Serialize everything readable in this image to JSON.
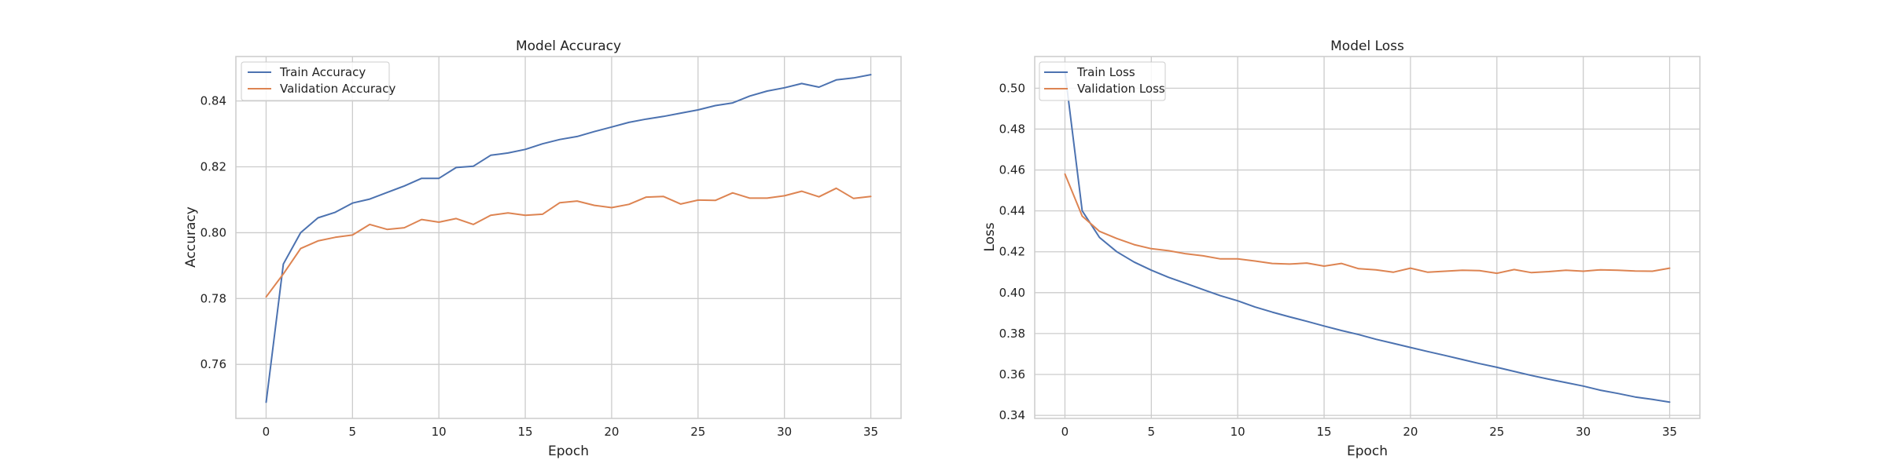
{
  "chart_data": [
    {
      "type": "line",
      "title": "Model Accuracy",
      "xlabel": "Epoch",
      "ylabel": "Accuracy",
      "xlim": [
        -1.75,
        36.75
      ],
      "ylim": [
        0.7436,
        0.8535
      ],
      "xticks": [
        0,
        5,
        10,
        15,
        20,
        25,
        30,
        35
      ],
      "yticks": [
        0.76,
        0.78,
        0.8,
        0.82,
        0.84
      ],
      "ytick_labels": [
        "0.76",
        "0.78",
        "0.80",
        "0.82",
        "0.84"
      ],
      "grid": true,
      "legend_position": "top-left",
      "x": [
        0,
        1,
        2,
        3,
        4,
        5,
        6,
        7,
        8,
        9,
        10,
        11,
        12,
        13,
        14,
        15,
        16,
        17,
        18,
        19,
        20,
        21,
        22,
        23,
        24,
        25,
        26,
        27,
        28,
        29,
        30,
        31,
        32,
        33,
        34,
        35
      ],
      "series": [
        {
          "name": "Train Accuracy",
          "color": "#4c72b0",
          "values": [
            0.7485,
            0.7905,
            0.8,
            0.8045,
            0.8062,
            0.809,
            0.8102,
            0.8122,
            0.8142,
            0.8165,
            0.8165,
            0.8198,
            0.8202,
            0.8235,
            0.8242,
            0.8253,
            0.827,
            0.8283,
            0.8292,
            0.8307,
            0.8321,
            0.8335,
            0.8345,
            0.8353,
            0.8363,
            0.8373,
            0.8386,
            0.8394,
            0.8415,
            0.843,
            0.844,
            0.8453,
            0.8442,
            0.8464,
            0.847,
            0.848
          ]
        },
        {
          "name": "Validation Accuracy",
          "color": "#dd8452",
          "values": [
            0.7805,
            0.7875,
            0.7952,
            0.7975,
            0.7986,
            0.7993,
            0.8025,
            0.801,
            0.8015,
            0.804,
            0.8032,
            0.8043,
            0.8025,
            0.8053,
            0.806,
            0.8053,
            0.8056,
            0.8091,
            0.8096,
            0.8083,
            0.8076,
            0.8086,
            0.8108,
            0.811,
            0.8087,
            0.8099,
            0.8098,
            0.8121,
            0.8105,
            0.8105,
            0.8112,
            0.8126,
            0.8109,
            0.8135,
            0.8104,
            0.811
          ]
        }
      ]
    },
    {
      "type": "line",
      "title": "Model Loss",
      "xlabel": "Epoch",
      "ylabel": "Loss",
      "xlim": [
        -1.75,
        36.75
      ],
      "ylim": [
        0.3385,
        0.5155
      ],
      "xticks": [
        0,
        5,
        10,
        15,
        20,
        25,
        30,
        35
      ],
      "yticks": [
        0.34,
        0.36,
        0.38,
        0.4,
        0.42,
        0.44,
        0.46,
        0.48,
        0.5
      ],
      "ytick_labels": [
        "0.34",
        "0.36",
        "0.38",
        "0.40",
        "0.42",
        "0.44",
        "0.46",
        "0.48",
        "0.50"
      ],
      "grid": true,
      "legend_position": "top-left",
      "x": [
        0,
        1,
        2,
        3,
        4,
        5,
        6,
        7,
        8,
        9,
        10,
        11,
        12,
        13,
        14,
        15,
        16,
        17,
        18,
        19,
        20,
        21,
        22,
        23,
        24,
        25,
        26,
        27,
        28,
        29,
        30,
        31,
        32,
        33,
        34,
        35
      ],
      "series": [
        {
          "name": "Train Loss",
          "color": "#4c72b0",
          "values": [
            0.508,
            0.44,
            0.427,
            0.42,
            0.415,
            0.411,
            0.4075,
            0.4045,
            0.4015,
            0.3985,
            0.396,
            0.393,
            0.3905,
            0.3882,
            0.386,
            0.3837,
            0.3815,
            0.3795,
            0.3772,
            0.3752,
            0.3732,
            0.3712,
            0.3693,
            0.3673,
            0.3653,
            0.3635,
            0.3615,
            0.3595,
            0.3577,
            0.356,
            0.3543,
            0.3523,
            0.3507,
            0.349,
            0.3478,
            0.3465
          ]
        },
        {
          "name": "Validation Loss",
          "color": "#dd8452",
          "values": [
            0.458,
            0.4375,
            0.43,
            0.4265,
            0.4235,
            0.4215,
            0.4205,
            0.419,
            0.418,
            0.4165,
            0.4165,
            0.4155,
            0.4143,
            0.414,
            0.4145,
            0.413,
            0.4143,
            0.4117,
            0.4112,
            0.41,
            0.412,
            0.41,
            0.4105,
            0.411,
            0.4108,
            0.4095,
            0.4113,
            0.4098,
            0.4103,
            0.411,
            0.4105,
            0.4112,
            0.411,
            0.4106,
            0.4105,
            0.412
          ]
        }
      ]
    }
  ]
}
